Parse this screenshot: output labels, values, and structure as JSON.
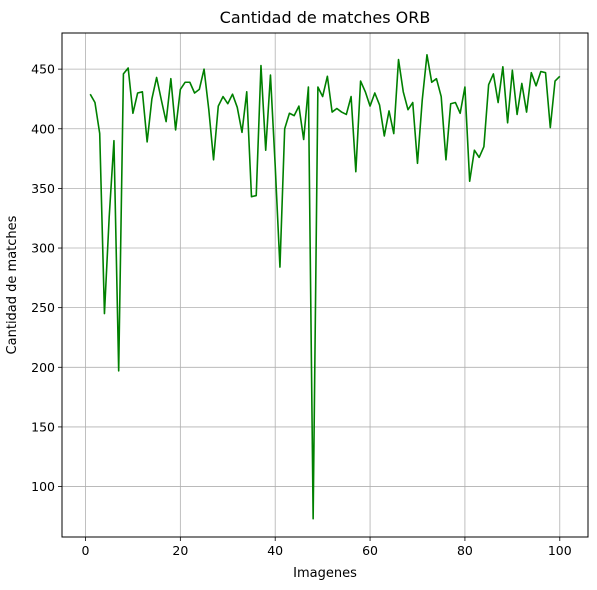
{
  "chart_data": {
    "type": "line",
    "title": "Cantidad de matches ORB",
    "xlabel": "Imagenes",
    "ylabel": "Cantidad de matches",
    "xlim": [
      -4.95,
      105.95
    ],
    "ylim": [
      57.7,
      480.3
    ],
    "xticks": [
      0,
      20,
      40,
      60,
      80,
      100
    ],
    "yticks": [
      100,
      150,
      200,
      250,
      300,
      350,
      400,
      450
    ],
    "grid": true,
    "series": [
      {
        "color": "#008000",
        "x": [
          1,
          2,
          3,
          4,
          5,
          6,
          7,
          8,
          9,
          10,
          11,
          12,
          13,
          14,
          15,
          16,
          17,
          18,
          19,
          20,
          21,
          22,
          23,
          24,
          25,
          26,
          27,
          28,
          29,
          30,
          31,
          32,
          33,
          34,
          35,
          36,
          37,
          38,
          39,
          40,
          41,
          42,
          43,
          44,
          45,
          46,
          47,
          48,
          49,
          50,
          51,
          52,
          53,
          54,
          55,
          56,
          57,
          58,
          59,
          60,
          61,
          62,
          63,
          64,
          65,
          66,
          67,
          68,
          69,
          70,
          71,
          72,
          73,
          74,
          75,
          76,
          77,
          78,
          79,
          80,
          81,
          82,
          83,
          84,
          85,
          86,
          87,
          88,
          89,
          90,
          91,
          92,
          93,
          94,
          95,
          96,
          97,
          98,
          99,
          100
        ],
        "values": [
          429,
          422,
          396,
          245,
          326,
          390,
          197,
          446,
          451,
          413,
          430,
          431,
          389,
          425,
          443,
          424,
          406,
          442,
          399,
          433,
          439,
          439,
          430,
          433,
          450,
          416,
          374,
          419,
          427,
          421,
          429,
          418,
          397,
          431,
          343,
          344,
          453,
          382,
          445,
          369,
          284,
          400,
          413,
          411,
          419,
          391,
          435,
          73,
          435,
          427,
          444,
          414,
          417,
          414,
          412,
          427,
          364,
          440,
          431,
          419,
          430,
          420,
          394,
          415,
          396,
          458,
          431,
          416,
          422,
          371,
          424,
          462,
          439,
          442,
          427,
          374,
          421,
          422,
          413,
          435,
          356,
          382,
          376,
          385,
          437,
          446,
          422,
          452,
          405,
          449,
          412,
          438,
          414,
          447,
          436,
          448,
          447,
          401,
          440,
          444
        ]
      }
    ]
  }
}
